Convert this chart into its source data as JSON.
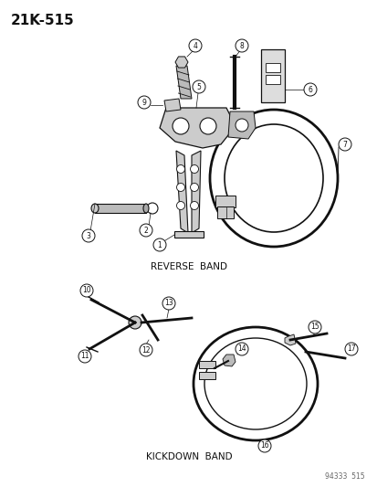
{
  "title": "21K-515",
  "background_color": "#ffffff",
  "reverse_band_label": "REVERSE  BAND",
  "kickdown_band_label": "KICKDOWN  BAND",
  "footer_text": "94333  515",
  "part_numbers": [
    1,
    2,
    3,
    4,
    5,
    6,
    7,
    8,
    9,
    10,
    11,
    12,
    13,
    14,
    15,
    16,
    17
  ],
  "fig_width": 4.14,
  "fig_height": 5.33
}
